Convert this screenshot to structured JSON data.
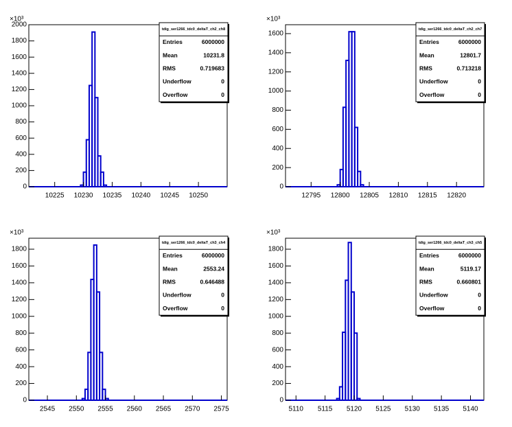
{
  "chart_data": [
    {
      "type": "histogram",
      "title": "tdig_ser1266_tdc0_deltaT_ch2_ch8",
      "y_multiplier": "×10³",
      "color": "#0000cc",
      "bins": [
        10229.5,
        10230,
        10230.5,
        10231,
        10231.5,
        10232,
        10232.5,
        10233,
        10233.5,
        10234
      ],
      "values": [
        20,
        180,
        580,
        1250,
        1910,
        1100,
        380,
        180,
        20
      ],
      "xlim": [
        10220.5,
        10255
      ],
      "xticks": [
        10225,
        10230,
        10235,
        10240,
        10245,
        10250
      ],
      "ylim": [
        0,
        2000
      ],
      "yticks": [
        0,
        200,
        400,
        600,
        800,
        1000,
        1200,
        1400,
        1600,
        1800,
        2000
      ],
      "stats": [
        {
          "label": "Entries",
          "value": 6000000
        },
        {
          "label": "Mean",
          "value": 10231.8
        },
        {
          "label": "RMS",
          "value": 0.719683
        },
        {
          "label": "Underflow",
          "value": 0
        },
        {
          "label": "Overflow",
          "value": 0
        }
      ]
    },
    {
      "type": "histogram",
      "title": "tdig_ser1266_tdc0_deltaT_ch2_ch7",
      "y_multiplier": "×10³",
      "color": "#0000cc",
      "bins": [
        12799.5,
        12800,
        12800.5,
        12801,
        12801.5,
        12802,
        12802.5,
        12803,
        12803.5,
        12804
      ],
      "values": [
        20,
        180,
        830,
        1320,
        1620,
        1620,
        620,
        160,
        20
      ],
      "xlim": [
        12790.6,
        12824.7
      ],
      "xticks": [
        12795,
        12800,
        12805,
        12810,
        12815,
        12820
      ],
      "ylim": [
        0,
        1693
      ],
      "yticks": [
        0,
        200,
        400,
        600,
        800,
        1000,
        1200,
        1400,
        1600
      ],
      "stats": [
        {
          "label": "Entries",
          "value": 6000000
        },
        {
          "label": "Mean",
          "value": 12801.7
        },
        {
          "label": "RMS",
          "value": 0.713218
        },
        {
          "label": "Underflow",
          "value": 0
        },
        {
          "label": "Overflow",
          "value": 0
        }
      ]
    },
    {
      "type": "histogram",
      "title": "tdig_ser1266_tdc0_deltaT_ch3_ch4",
      "y_multiplier": "×10³",
      "color": "#0000cc",
      "bins": [
        2551,
        2551.5,
        2552,
        2552.5,
        2553,
        2553.5,
        2554,
        2554.5,
        2555,
        2555.5
      ],
      "values": [
        20,
        130,
        570,
        1440,
        1850,
        1290,
        570,
        130,
        20
      ],
      "xlim": [
        2541.8,
        2576
      ],
      "xticks": [
        2545,
        2550,
        2555,
        2560,
        2565,
        2570,
        2575
      ],
      "ylim": [
        0,
        1931
      ],
      "yticks": [
        0,
        200,
        400,
        600,
        800,
        1000,
        1200,
        1400,
        1600,
        1800
      ],
      "stats": [
        {
          "label": "Entries",
          "value": 6000000
        },
        {
          "label": "Mean",
          "value": 2553.24
        },
        {
          "label": "RMS",
          "value": 0.646488
        },
        {
          "label": "Underflow",
          "value": 0
        },
        {
          "label": "Overflow",
          "value": 0
        }
      ]
    },
    {
      "type": "histogram",
      "title": "tdig_ser1266_tdc0_deltaT_ch3_ch5",
      "y_multiplier": "×10³",
      "color": "#0000cc",
      "bins": [
        5117,
        5117.5,
        5118,
        5118.5,
        5119,
        5119.5,
        5120,
        5120.5,
        5121
      ],
      "values": [
        20,
        160,
        810,
        1430,
        1880,
        1290,
        800,
        20
      ],
      "xlim": [
        5108.2,
        5142.3
      ],
      "xticks": [
        5110,
        5115,
        5120,
        5125,
        5130,
        5135,
        5140
      ],
      "ylim": [
        0,
        1931
      ],
      "yticks": [
        0,
        200,
        400,
        600,
        800,
        1000,
        1200,
        1400,
        1600,
        1800
      ],
      "stats": [
        {
          "label": "Entries",
          "value": 6000000
        },
        {
          "label": "Mean",
          "value": 5119.17
        },
        {
          "label": "RMS",
          "value": 0.660801
        },
        {
          "label": "Underflow",
          "value": 0
        },
        {
          "label": "Overflow",
          "value": 0
        }
      ]
    }
  ]
}
